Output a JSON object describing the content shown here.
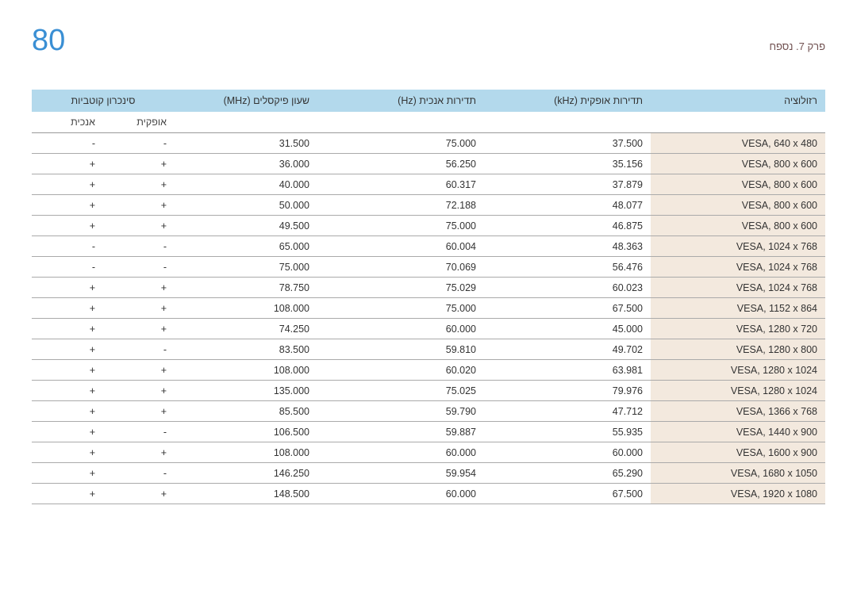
{
  "header": {
    "page_number": "80",
    "breadcrumb": "פרק 7. נספח"
  },
  "table": {
    "head1": {
      "resolution": "רזולוציה",
      "hfreq": "תדירות אופקית (kHz)",
      "vfreq": "תדירות אנכית (Hz)",
      "pclk": "שעון פיקסלים (MHz)",
      "syncpol": "סינכרון קוטביות"
    },
    "head2": {
      "hsync": "אופקית",
      "vsync": "אנכית"
    },
    "rows": [
      {
        "res": "VESA, 640 x 480",
        "hf": "37.500",
        "vf": "75.000",
        "pc": "31.500",
        "hs": "-",
        "vs": "-"
      },
      {
        "res": "VESA, 800 x 600",
        "hf": "35.156",
        "vf": "56.250",
        "pc": "36.000",
        "hs": "+",
        "vs": "+"
      },
      {
        "res": "VESA, 800 x 600",
        "hf": "37.879",
        "vf": "60.317",
        "pc": "40.000",
        "hs": "+",
        "vs": "+"
      },
      {
        "res": "VESA, 800 x 600",
        "hf": "48.077",
        "vf": "72.188",
        "pc": "50.000",
        "hs": "+",
        "vs": "+"
      },
      {
        "res": "VESA, 800 x 600",
        "hf": "46.875",
        "vf": "75.000",
        "pc": "49.500",
        "hs": "+",
        "vs": "+"
      },
      {
        "res": "VESA, 1024 x 768",
        "hf": "48.363",
        "vf": "60.004",
        "pc": "65.000",
        "hs": "-",
        "vs": "-"
      },
      {
        "res": "VESA, 1024 x 768",
        "hf": "56.476",
        "vf": "70.069",
        "pc": "75.000",
        "hs": "-",
        "vs": "-"
      },
      {
        "res": "VESA, 1024 x 768",
        "hf": "60.023",
        "vf": "75.029",
        "pc": "78.750",
        "hs": "+",
        "vs": "+"
      },
      {
        "res": "VESA, 1152 x 864",
        "hf": "67.500",
        "vf": "75.000",
        "pc": "108.000",
        "hs": "+",
        "vs": "+"
      },
      {
        "res": "VESA, 1280 x 720",
        "hf": "45.000",
        "vf": "60.000",
        "pc": "74.250",
        "hs": "+",
        "vs": "+"
      },
      {
        "res": "VESA, 1280 x 800",
        "hf": "49.702",
        "vf": "59.810",
        "pc": "83.500",
        "hs": "-",
        "vs": "+"
      },
      {
        "res": "VESA, 1280 x 1024",
        "hf": "63.981",
        "vf": "60.020",
        "pc": "108.000",
        "hs": "+",
        "vs": "+"
      },
      {
        "res": "VESA, 1280 x 1024",
        "hf": "79.976",
        "vf": "75.025",
        "pc": "135.000",
        "hs": "+",
        "vs": "+"
      },
      {
        "res": "VESA, 1366 x 768",
        "hf": "47.712",
        "vf": "59.790",
        "pc": "85.500",
        "hs": "+",
        "vs": "+"
      },
      {
        "res": "VESA, 1440 x 900",
        "hf": "55.935",
        "vf": "59.887",
        "pc": "106.500",
        "hs": "-",
        "vs": "+"
      },
      {
        "res": "VESA, 1600 x 900",
        "hf": "60.000",
        "vf": "60.000",
        "pc": "108.000",
        "hs": "+",
        "vs": "+"
      },
      {
        "res": "VESA, 1680 x 1050",
        "hf": "65.290",
        "vf": "59.954",
        "pc": "146.250",
        "hs": "-",
        "vs": "+"
      },
      {
        "res": "VESA, 1920 x 1080",
        "hf": "67.500",
        "vf": "60.000",
        "pc": "148.500",
        "hs": "+",
        "vs": "+"
      }
    ]
  }
}
